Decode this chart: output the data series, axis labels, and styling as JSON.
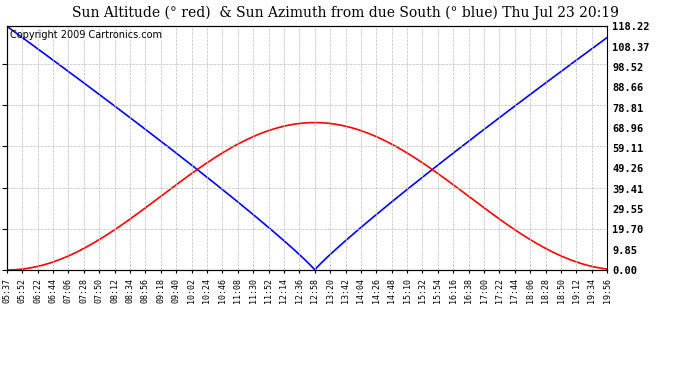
{
  "title": "Sun Altitude (° red)  & Sun Azimuth from due South (° blue) Thu Jul 23 20:19",
  "copyright_text": "Copyright 2009 Cartronics.com",
  "y_right_ticks": [
    0.0,
    9.85,
    19.7,
    29.55,
    39.41,
    49.26,
    59.11,
    68.96,
    78.81,
    88.66,
    98.52,
    108.37,
    118.22
  ],
  "x_tick_labels": [
    "05:37",
    "05:52",
    "06:22",
    "06:44",
    "07:06",
    "07:28",
    "07:50",
    "08:12",
    "08:34",
    "08:56",
    "09:18",
    "09:40",
    "10:02",
    "10:24",
    "10:46",
    "11:08",
    "11:30",
    "11:52",
    "12:14",
    "12:36",
    "12:58",
    "13:20",
    "13:42",
    "14:04",
    "14:26",
    "14:48",
    "15:10",
    "15:32",
    "15:54",
    "16:16",
    "16:38",
    "17:00",
    "17:22",
    "17:44",
    "18:06",
    "18:28",
    "18:50",
    "19:12",
    "19:34",
    "19:56"
  ],
  "altitude_color": "red",
  "azimuth_color": "blue",
  "background_color": "white",
  "grid_color": "#bbbbbb",
  "ymin": 0.0,
  "ymax": 118.22,
  "altitude_peak": 71.5,
  "azimuth_max": 118.22,
  "noon_tick": 20,
  "n_ticks": 40,
  "title_fontsize": 10,
  "copyright_fontsize": 7,
  "tick_fontsize": 6,
  "ytick_fontsize": 7.5
}
